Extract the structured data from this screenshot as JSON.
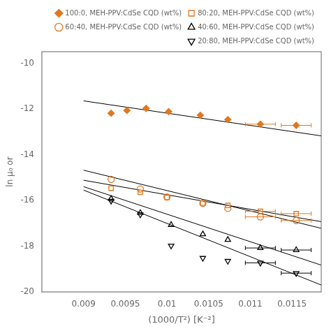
{
  "chart_data": {
    "type": "scatter",
    "xlabel": "(1000/T²) [K⁻²]",
    "ylabel": "ln μ₀ or",
    "xlim": [
      0.0085,
      0.01185
    ],
    "ylim": [
      -20,
      -9.5
    ],
    "xticks": [
      0.009,
      0.0095,
      0.01,
      0.0105,
      0.011,
      0.0115
    ],
    "yticks": [
      -20,
      -18,
      -16,
      -14,
      -12,
      -10
    ],
    "grid": false,
    "legend": "upper right",
    "series": [
      {
        "name": "100:0, MEH-PPV:CdSe CQD (wt%)",
        "color": "#E07820",
        "marker": "diamond",
        "x": [
          0.00933,
          0.00952,
          0.00975,
          0.01002,
          0.0104,
          0.01073,
          0.01112,
          0.01155
        ],
        "values": [
          -12.19,
          -12.07,
          -11.98,
          -12.12,
          -12.28,
          -12.47,
          -12.67,
          -12.72
        ],
        "xerr": [
          0,
          0,
          0,
          0,
          0,
          0,
          0.00018,
          0.00018
        ],
        "fit": {
          "x": [
            0.009,
            0.01185
          ],
          "values": [
            -11.65,
            -13.18
          ],
          "color": "#000000"
        }
      },
      {
        "name": "80:20, MEH-PPV:CdSe CQD (wt%)",
        "color": "#E07820",
        "marker": "square-open",
        "x": [
          0.00933,
          0.00968,
          0.01,
          0.01043,
          0.01073,
          0.01112,
          0.01155
        ],
        "values": [
          -15.47,
          -15.65,
          -15.87,
          -16.12,
          -16.22,
          -16.48,
          -16.58
        ],
        "xerr": [
          0,
          0,
          0,
          0,
          0,
          0.00018,
          0.00018
        ],
        "fit": {
          "x": [
            0.009,
            0.01185
          ],
          "values": [
            -15.12,
            -16.93
          ],
          "color": "#000000"
        }
      },
      {
        "name": "60:40, MEH-PPV:CdSe CQD (wt%)",
        "color": "#E07820",
        "marker": "circle-open",
        "x": [
          0.00933,
          0.00968,
          0.01,
          0.01043,
          0.01073,
          0.01112,
          0.01155
        ],
        "values": [
          -15.08,
          -15.5,
          -15.85,
          -16.13,
          -16.35,
          -16.72,
          -16.88
        ],
        "xerr": [
          0,
          0,
          0,
          0,
          0,
          0.00018,
          0.00018
        ],
        "fit": {
          "x": [
            0.009,
            0.01185
          ],
          "values": [
            -14.68,
            -17.22
          ],
          "color": "#000000"
        }
      },
      {
        "name": "40:60, MEH-PPV:CdSe CQD (wt%)",
        "color": "#000000",
        "marker": "triangle-up-open",
        "x": [
          0.00933,
          0.00968,
          0.01005,
          0.01043,
          0.01073,
          0.01112,
          0.01155
        ],
        "values": [
          -15.93,
          -16.55,
          -17.07,
          -17.48,
          -17.72,
          -18.08,
          -18.17
        ],
        "xerr": [
          0,
          0,
          0,
          0,
          0,
          0.00018,
          0.00018
        ],
        "fit": {
          "x": [
            0.009,
            0.01185
          ],
          "values": [
            -15.4,
            -18.83
          ],
          "color": "#000000"
        }
      },
      {
        "name": "20:80, MEH-PPV:CdSe CQD (wt%)",
        "color": "#000000",
        "marker": "triangle-down-open",
        "x": [
          0.00933,
          0.00968,
          0.01005,
          0.01043,
          0.01073,
          0.01112,
          0.01155
        ],
        "values": [
          -16.02,
          -16.62,
          -17.98,
          -18.52,
          -18.65,
          -18.73,
          -19.18
        ],
        "xerr": [
          0,
          0,
          0,
          0,
          0,
          0.00018,
          0.00018
        ],
        "fit": {
          "x": [
            0.009,
            0.01185
          ],
          "values": [
            -15.55,
            -19.7
          ],
          "color": "#000000"
        }
      }
    ]
  }
}
